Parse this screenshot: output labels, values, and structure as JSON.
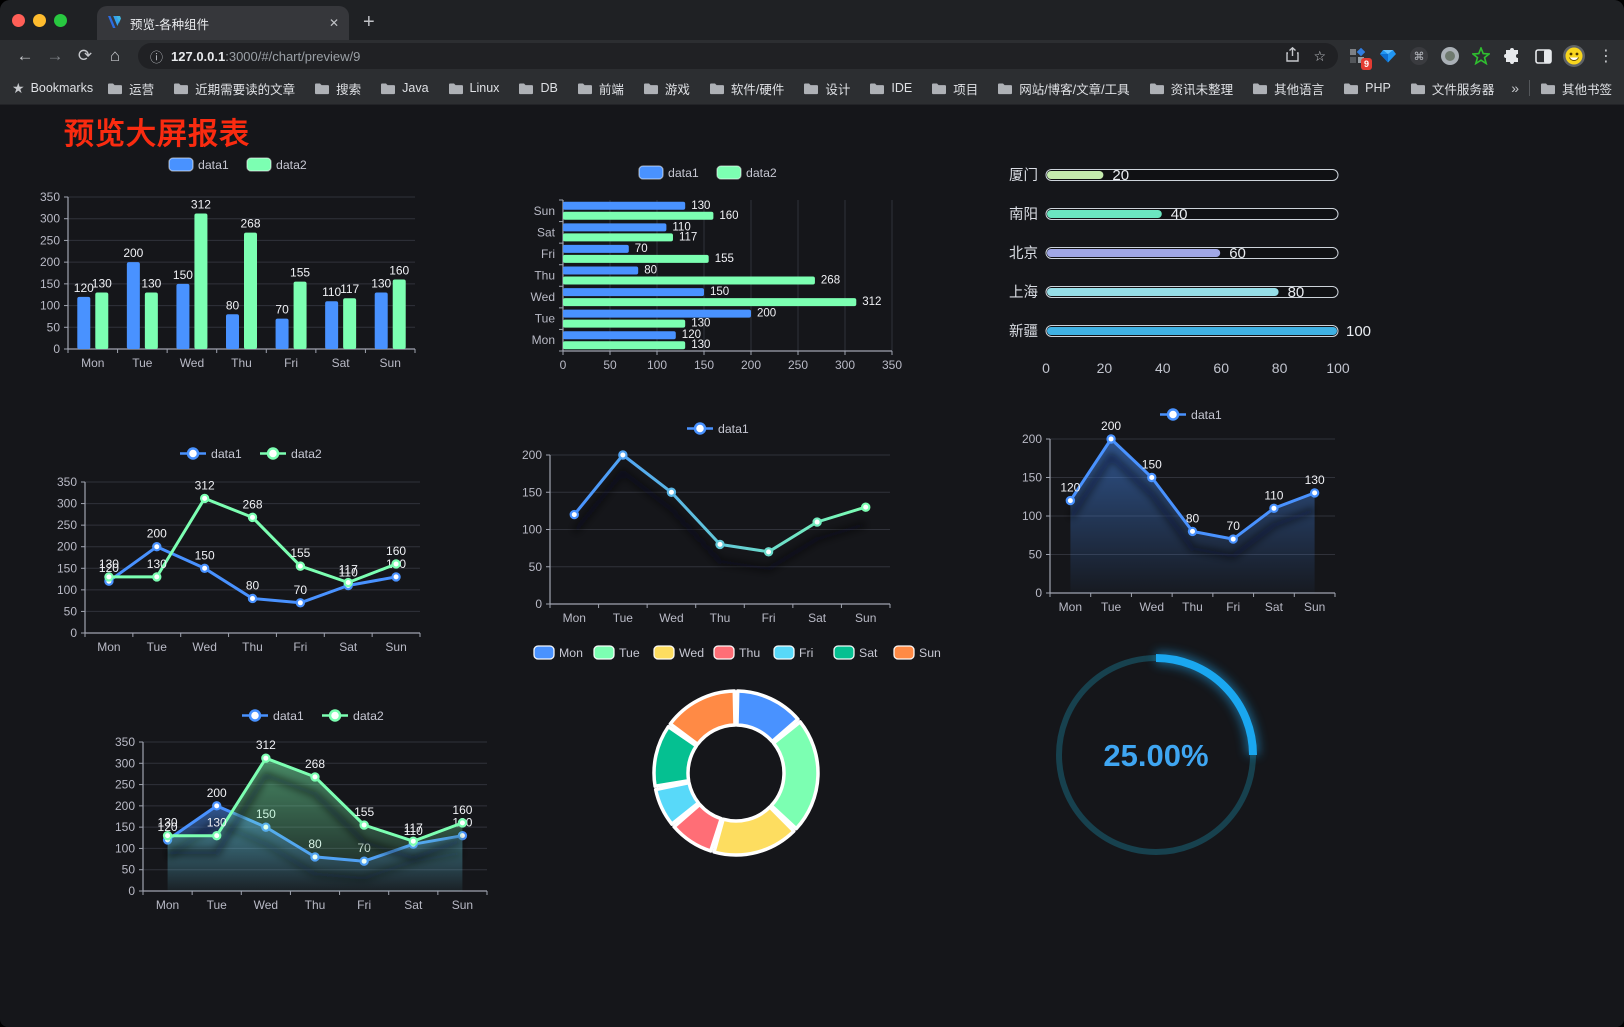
{
  "browser": {
    "tab_title": "预览-各种组件",
    "url": {
      "host": "127.0.0.1",
      "rest": ":3000/#/chart/preview/9"
    },
    "bookmarks_label": "Bookmarks",
    "bookmarks": [
      "运营",
      "近期需要读的文章",
      "搜索",
      "Java",
      "Linux",
      "DB",
      "前端",
      "游戏",
      "软件/硬件",
      "设计",
      "IDE",
      "项目",
      "网站/博客/文章/工具",
      "资讯未整理",
      "其他语言",
      "PHP",
      "文件服务器"
    ],
    "overflow_chevron": "»",
    "other_bookmarks": "其他书签",
    "extension_badge": "9"
  },
  "icons": {
    "close": "✕",
    "new_tab": "+",
    "back": "←",
    "forward": "→",
    "reload": "⟳",
    "home": "⌂",
    "info": "ⓘ",
    "star": "☆",
    "menu": "⋮",
    "bookmark_star": "★",
    "command": "⌘"
  },
  "page": {
    "title": "预览大屏报表",
    "title_color": "#fa2b10",
    "background": "#15161a"
  },
  "chart_data": [
    {
      "id": "bar-grouped",
      "type": "bar",
      "categories": [
        "Mon",
        "Tue",
        "Wed",
        "Thu",
        "Fri",
        "Sat",
        "Sun"
      ],
      "series": [
        {
          "name": "data1",
          "color": "#4992ff",
          "values": [
            120,
            200,
            150,
            80,
            70,
            110,
            130
          ]
        },
        {
          "name": "data2",
          "color": "#7cffb2",
          "values": [
            130,
            130,
            312,
            268,
            155,
            117,
            160
          ]
        }
      ],
      "ylim": [
        0,
        350
      ],
      "ystep": 50,
      "grid": true,
      "legend_position": "top"
    },
    {
      "id": "bar-horizontal",
      "type": "bar-horizontal",
      "categories": [
        "Mon",
        "Tue",
        "Wed",
        "Thu",
        "Fri",
        "Sat",
        "Sun"
      ],
      "display_order_top_to_bottom": [
        "Sun",
        "Sat",
        "Fri",
        "Thu",
        "Wed",
        "Tue",
        "Mon"
      ],
      "series": [
        {
          "name": "data1",
          "color": "#4992ff",
          "values": [
            120,
            200,
            150,
            80,
            70,
            110,
            130
          ]
        },
        {
          "name": "data2",
          "color": "#7cffb2",
          "values": [
            130,
            130,
            312,
            268,
            155,
            117,
            160
          ]
        }
      ],
      "xlim": [
        0,
        350
      ],
      "xstep": 50,
      "grid": true,
      "legend_position": "top"
    },
    {
      "id": "progress",
      "type": "progress-bars",
      "items": [
        {
          "label": "厦门",
          "value": 20,
          "color": "#c4ebad"
        },
        {
          "label": "南阳",
          "value": 40,
          "color": "#6be6c1"
        },
        {
          "label": "北京",
          "value": 60,
          "color": "#a0a7e6"
        },
        {
          "label": "上海",
          "value": 80,
          "color": "#96dee8"
        },
        {
          "label": "新疆",
          "value": 100,
          "color": "#3fb1e3"
        }
      ],
      "xlim": [
        0,
        100
      ],
      "xticks": [
        0,
        20,
        40,
        60,
        80,
        100
      ]
    },
    {
      "id": "line-basic",
      "type": "line",
      "categories": [
        "Mon",
        "Tue",
        "Wed",
        "Thu",
        "Fri",
        "Sat",
        "Sun"
      ],
      "series": [
        {
          "name": "data1",
          "color": "#4992ff",
          "values": [
            120,
            200,
            150,
            80,
            70,
            110,
            130
          ],
          "labels": true
        },
        {
          "name": "data2",
          "color": "#7cffb2",
          "values": [
            130,
            130,
            312,
            268,
            155,
            117,
            160
          ],
          "labels": true
        }
      ],
      "ylim": [
        0,
        350
      ],
      "ystep": 50,
      "grid": true,
      "legend_position": "top"
    },
    {
      "id": "line-gradient",
      "type": "line",
      "categories": [
        "Mon",
        "Tue",
        "Wed",
        "Thu",
        "Fri",
        "Sat",
        "Sun"
      ],
      "series": [
        {
          "name": "data1",
          "gradient": [
            "#4992ff",
            "#7cffb2"
          ],
          "values": [
            120,
            200,
            150,
            80,
            70,
            110,
            130
          ],
          "labels": false,
          "shadow": true
        }
      ],
      "ylim": [
        0,
        200
      ],
      "ystep": 50,
      "grid": true,
      "legend_position": "top"
    },
    {
      "id": "line-area",
      "type": "area",
      "categories": [
        "Mon",
        "Tue",
        "Wed",
        "Thu",
        "Fri",
        "Sat",
        "Sun"
      ],
      "series": [
        {
          "name": "data1",
          "color": "#4992ff",
          "values": [
            120,
            200,
            150,
            80,
            70,
            110,
            130
          ],
          "labels": true,
          "area": true,
          "shadow": true
        }
      ],
      "ylim": [
        0,
        200
      ],
      "ystep": 50,
      "grid": true,
      "legend_position": "top"
    },
    {
      "id": "area-double",
      "type": "area",
      "categories": [
        "Mon",
        "Tue",
        "Wed",
        "Thu",
        "Fri",
        "Sat",
        "Sun"
      ],
      "series": [
        {
          "name": "data1",
          "color": "#4992ff",
          "values": [
            120,
            200,
            150,
            80,
            70,
            110,
            130
          ],
          "labels": true,
          "area": true,
          "shadow": true
        },
        {
          "name": "data2",
          "color": "#7cffb2",
          "values": [
            130,
            130,
            312,
            268,
            155,
            117,
            160
          ],
          "labels": true,
          "area": true,
          "shadow": true
        }
      ],
      "ylim": [
        0,
        350
      ],
      "ystep": 50,
      "grid": true,
      "legend_position": "top"
    },
    {
      "id": "donut",
      "type": "pie",
      "labels": [
        "Mon",
        "Tue",
        "Wed",
        "Thu",
        "Fri",
        "Sat",
        "Sun"
      ],
      "values": [
        120,
        200,
        150,
        80,
        70,
        110,
        130
      ],
      "colors": [
        "#4992ff",
        "#7cffb2",
        "#fddd60",
        "#ff6e76",
        "#58d9f9",
        "#05c091",
        "#ff8a45"
      ],
      "inner_radius_ratio": 0.59,
      "legend_position": "top"
    },
    {
      "id": "gauge",
      "type": "gauge",
      "value": 25,
      "display": "25.00%",
      "color": "#1aa7f0",
      "track": "#17414e",
      "text_color": "#3fa6f2"
    }
  ]
}
